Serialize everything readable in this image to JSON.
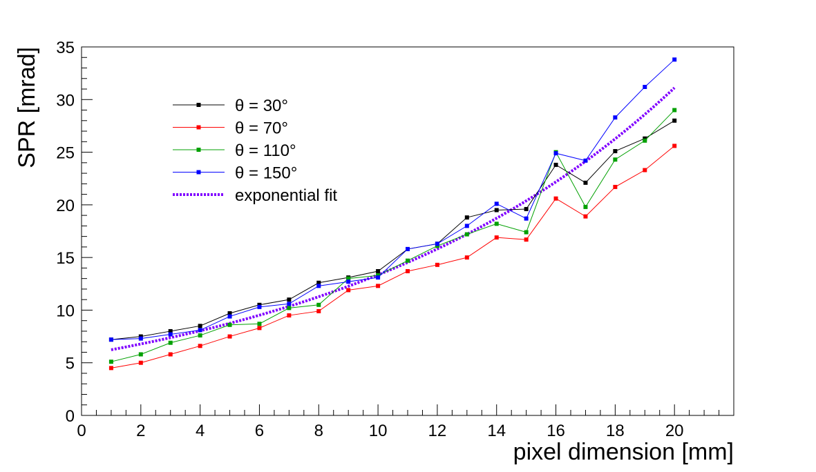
{
  "chart_data": {
    "type": "line",
    "xlabel": "pixel dimension [mm]",
    "ylabel": "SPR [mrad]",
    "xlim": [
      0,
      22
    ],
    "ylim": [
      0,
      35
    ],
    "x_ticks": [
      0,
      2,
      4,
      6,
      8,
      10,
      12,
      14,
      16,
      18,
      20
    ],
    "y_ticks": [
      0,
      5,
      10,
      15,
      20,
      25,
      30,
      35
    ],
    "grid": false,
    "legend_position": "upper-left",
    "x": [
      1,
      2,
      3,
      4,
      5,
      6,
      7,
      8,
      9,
      10,
      11,
      12,
      13,
      14,
      15,
      16,
      17,
      18,
      19,
      20
    ],
    "series": [
      {
        "name": "θ = 30°",
        "color": "#000000",
        "values": [
          7.2,
          7.5,
          8.0,
          8.5,
          9.7,
          10.5,
          11.0,
          12.6,
          13.1,
          13.7,
          15.8,
          16.3,
          18.8,
          19.5,
          19.6,
          23.8,
          22.1,
          25.1,
          26.3,
          28.0
        ]
      },
      {
        "name": "θ = 70°",
        "color": "#ff0000",
        "values": [
          4.5,
          5.0,
          5.8,
          6.6,
          7.5,
          8.3,
          9.5,
          9.9,
          11.9,
          12.3,
          13.7,
          14.3,
          15.0,
          16.9,
          16.7,
          20.6,
          18.9,
          21.7,
          23.3,
          25.6
        ]
      },
      {
        "name": "θ = 110°",
        "color": "#00a000",
        "values": [
          5.1,
          5.8,
          6.9,
          7.6,
          8.6,
          8.7,
          10.2,
          10.5,
          13.0,
          13.3,
          14.7,
          16.1,
          17.2,
          18.2,
          17.4,
          25.0,
          19.8,
          24.3,
          26.1,
          29.0
        ]
      },
      {
        "name": "θ = 150°",
        "color": "#0000ff",
        "values": [
          7.2,
          7.3,
          7.7,
          8.1,
          9.4,
          10.3,
          10.6,
          12.3,
          12.7,
          13.1,
          15.8,
          16.3,
          18.0,
          20.1,
          18.7,
          24.9,
          24.2,
          28.3,
          31.2,
          33.8
        ]
      },
      {
        "name": "exponential fit",
        "color": "#8000ff",
        "style": "dotted",
        "kind": "fit",
        "fit_x_range": [
          1,
          20
        ],
        "fit_a": 5.73,
        "fit_b": 0.0846
      }
    ]
  }
}
